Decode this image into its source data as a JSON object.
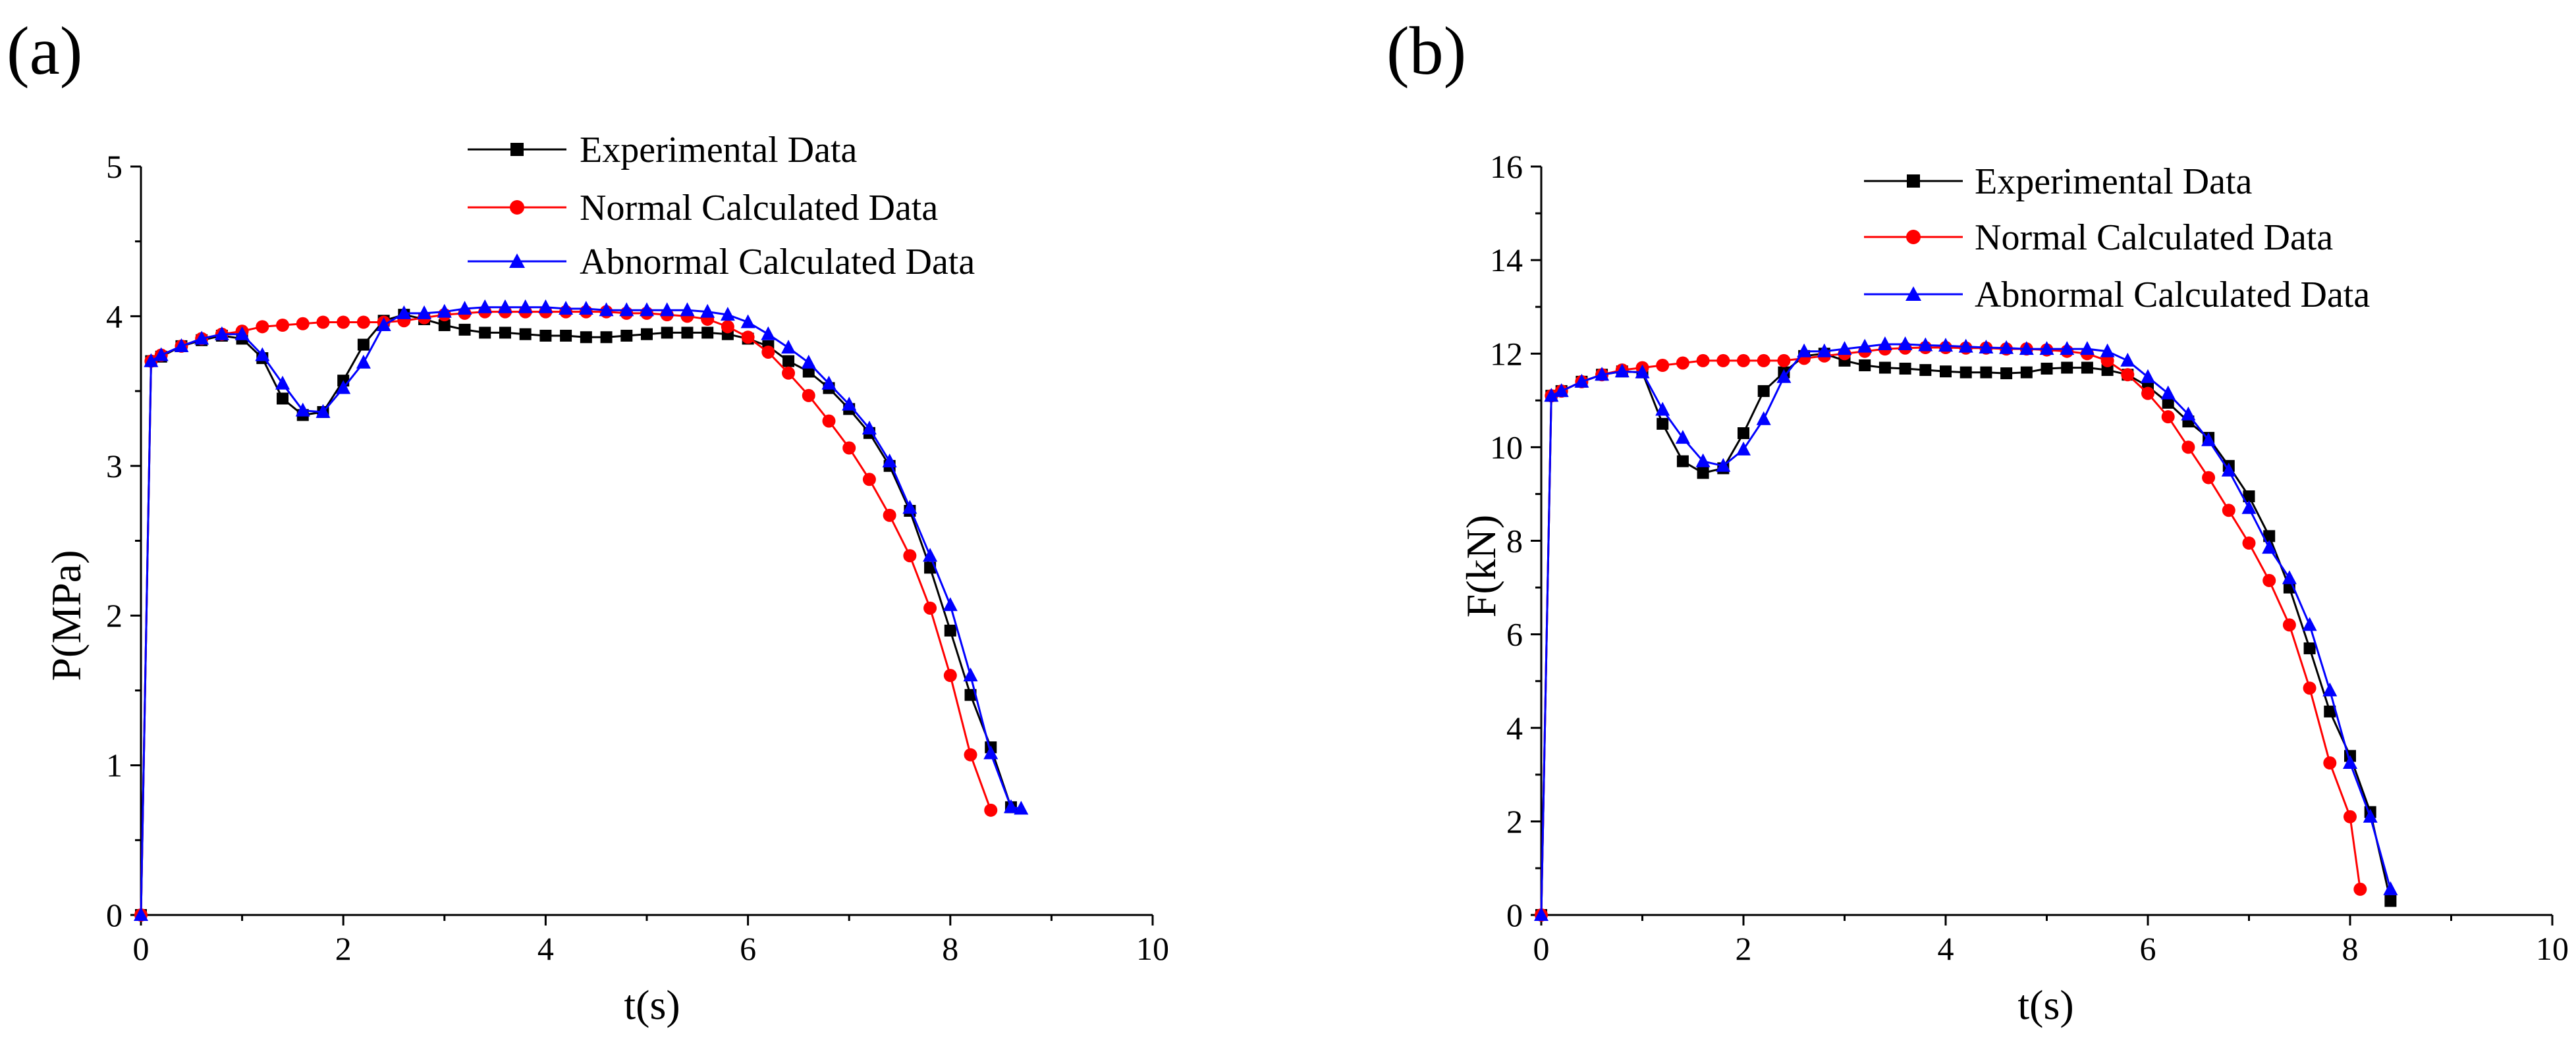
{
  "chart_data": [
    {
      "type": "line",
      "panel_label": "(a)",
      "title": "",
      "xlabel": "t(s)",
      "ylabel": "P(MPa)",
      "xlim": [
        0,
        10
      ],
      "ylim": [
        0,
        5
      ],
      "xticks": [
        0,
        2,
        4,
        6,
        8,
        10
      ],
      "yticks": [
        0,
        1,
        2,
        3,
        4,
        5
      ],
      "grid": false,
      "legend_position": "top-center",
      "series": [
        {
          "name": "Experimental Data",
          "color": "#000000",
          "marker": "square",
          "x": [
            0,
            0.1,
            0.2,
            0.4,
            0.6,
            0.8,
            1.0,
            1.2,
            1.4,
            1.6,
            1.8,
            2.0,
            2.2,
            2.4,
            2.6,
            2.8,
            3.0,
            3.2,
            3.4,
            3.6,
            3.8,
            4.0,
            4.2,
            4.4,
            4.6,
            4.8,
            5.0,
            5.2,
            5.4,
            5.6,
            5.8,
            6.0,
            6.2,
            6.4,
            6.6,
            6.8,
            7.0,
            7.2,
            7.4,
            7.6,
            7.8,
            8.0,
            8.2,
            8.4,
            8.6
          ],
          "y": [
            0,
            3.7,
            3.73,
            3.8,
            3.84,
            3.87,
            3.85,
            3.72,
            3.45,
            3.34,
            3.36,
            3.57,
            3.81,
            3.97,
            4.01,
            3.98,
            3.94,
            3.91,
            3.89,
            3.89,
            3.88,
            3.87,
            3.87,
            3.86,
            3.86,
            3.87,
            3.88,
            3.89,
            3.89,
            3.89,
            3.88,
            3.85,
            3.8,
            3.7,
            3.63,
            3.52,
            3.38,
            3.22,
            3.0,
            2.7,
            2.32,
            1.9,
            1.47,
            1.12,
            0.72
          ]
        },
        {
          "name": "Normal Calculated Data",
          "color": "#ff0000",
          "marker": "circle",
          "x": [
            0,
            0.1,
            0.2,
            0.4,
            0.6,
            0.8,
            1.0,
            1.2,
            1.4,
            1.6,
            1.8,
            2.0,
            2.2,
            2.4,
            2.6,
            2.8,
            3.0,
            3.2,
            3.4,
            3.6,
            3.8,
            4.0,
            4.2,
            4.4,
            4.6,
            4.8,
            5.0,
            5.2,
            5.4,
            5.6,
            5.8,
            6.0,
            6.2,
            6.4,
            6.6,
            6.8,
            7.0,
            7.2,
            7.4,
            7.6,
            7.8,
            8.0,
            8.2,
            8.4
          ],
          "y": [
            0,
            3.7,
            3.74,
            3.8,
            3.85,
            3.88,
            3.9,
            3.93,
            3.94,
            3.95,
            3.96,
            3.96,
            3.96,
            3.96,
            3.97,
            3.99,
            4.01,
            4.02,
            4.03,
            4.03,
            4.03,
            4.03,
            4.03,
            4.03,
            4.03,
            4.02,
            4.02,
            4.01,
            4.0,
            3.98,
            3.93,
            3.86,
            3.76,
            3.62,
            3.47,
            3.3,
            3.12,
            2.91,
            2.67,
            2.4,
            2.05,
            1.6,
            1.07,
            0.7
          ]
        },
        {
          "name": "Abnormal Calculated Data",
          "color": "#0000ff",
          "marker": "triangle",
          "x": [
            0,
            0.1,
            0.2,
            0.4,
            0.6,
            0.8,
            1.0,
            1.2,
            1.4,
            1.6,
            1.8,
            2.0,
            2.2,
            2.4,
            2.6,
            2.8,
            3.0,
            3.2,
            3.4,
            3.6,
            3.8,
            4.0,
            4.2,
            4.4,
            4.6,
            4.8,
            5.0,
            5.2,
            5.4,
            5.6,
            5.8,
            6.0,
            6.2,
            6.4,
            6.6,
            6.8,
            7.0,
            7.2,
            7.4,
            7.6,
            7.8,
            8.0,
            8.2,
            8.4,
            8.6,
            8.7
          ],
          "y": [
            0,
            3.7,
            3.74,
            3.8,
            3.85,
            3.88,
            3.88,
            3.74,
            3.55,
            3.37,
            3.36,
            3.52,
            3.69,
            3.94,
            4.02,
            4.02,
            4.03,
            4.05,
            4.06,
            4.06,
            4.06,
            4.06,
            4.05,
            4.05,
            4.04,
            4.04,
            4.04,
            4.04,
            4.04,
            4.03,
            4.01,
            3.96,
            3.88,
            3.79,
            3.69,
            3.55,
            3.41,
            3.25,
            3.03,
            2.72,
            2.4,
            2.07,
            1.6,
            1.08,
            0.72,
            0.71
          ]
        }
      ]
    },
    {
      "type": "line",
      "panel_label": "(b)",
      "title": "",
      "xlabel": "t(s)",
      "ylabel": "F(kN)",
      "xlim": [
        0,
        10
      ],
      "ylim": [
        0,
        16
      ],
      "xticks": [
        0,
        2,
        4,
        6,
        8,
        10
      ],
      "yticks": [
        0,
        2,
        4,
        6,
        8,
        10,
        12,
        14,
        16
      ],
      "grid": false,
      "legend_position": "top-center",
      "series": [
        {
          "name": "Experimental Data",
          "color": "#000000",
          "marker": "square",
          "x": [
            0,
            0.1,
            0.2,
            0.4,
            0.6,
            0.8,
            1.0,
            1.2,
            1.4,
            1.6,
            1.8,
            2.0,
            2.2,
            2.4,
            2.6,
            2.8,
            3.0,
            3.2,
            3.4,
            3.6,
            3.8,
            4.0,
            4.2,
            4.4,
            4.6,
            4.8,
            5.0,
            5.2,
            5.4,
            5.6,
            5.8,
            6.0,
            6.2,
            6.4,
            6.6,
            6.8,
            7.0,
            7.2,
            7.4,
            7.6,
            7.8,
            8.0,
            8.2,
            8.4
          ],
          "y": [
            0,
            11.1,
            11.2,
            11.4,
            11.55,
            11.62,
            11.6,
            10.5,
            9.7,
            9.45,
            9.55,
            10.3,
            11.2,
            11.6,
            11.95,
            12.0,
            11.85,
            11.75,
            11.7,
            11.68,
            11.65,
            11.62,
            11.6,
            11.6,
            11.58,
            11.6,
            11.68,
            11.7,
            11.7,
            11.65,
            11.55,
            11.3,
            10.95,
            10.55,
            10.2,
            9.6,
            8.95,
            8.1,
            7.0,
            5.7,
            4.35,
            3.4,
            2.2,
            0.3
          ]
        },
        {
          "name": "Normal Calculated Data",
          "color": "#ff0000",
          "marker": "circle",
          "x": [
            0,
            0.1,
            0.2,
            0.4,
            0.6,
            0.8,
            1.0,
            1.2,
            1.4,
            1.6,
            1.8,
            2.0,
            2.2,
            2.4,
            2.6,
            2.8,
            3.0,
            3.2,
            3.4,
            3.6,
            3.8,
            4.0,
            4.2,
            4.4,
            4.6,
            4.8,
            5.0,
            5.2,
            5.4,
            5.6,
            5.8,
            6.0,
            6.2,
            6.4,
            6.6,
            6.8,
            7.0,
            7.2,
            7.4,
            7.6,
            7.8,
            8.0,
            8.1
          ],
          "y": [
            0,
            11.1,
            11.2,
            11.4,
            11.55,
            11.65,
            11.7,
            11.75,
            11.8,
            11.85,
            11.85,
            11.85,
            11.85,
            11.85,
            11.9,
            11.95,
            12.0,
            12.05,
            12.1,
            12.12,
            12.13,
            12.13,
            12.12,
            12.12,
            12.1,
            12.1,
            12.08,
            12.05,
            12.0,
            11.85,
            11.55,
            11.15,
            10.65,
            10.0,
            9.35,
            8.65,
            7.95,
            7.15,
            6.2,
            4.85,
            3.25,
            2.1,
            0.55
          ]
        },
        {
          "name": "Abnormal Calculated Data",
          "color": "#0000ff",
          "marker": "triangle",
          "x": [
            0,
            0.1,
            0.2,
            0.4,
            0.6,
            0.8,
            1.0,
            1.2,
            1.4,
            1.6,
            1.8,
            2.0,
            2.2,
            2.4,
            2.6,
            2.8,
            3.0,
            3.2,
            3.4,
            3.6,
            3.8,
            4.0,
            4.2,
            4.4,
            4.6,
            4.8,
            5.0,
            5.2,
            5.4,
            5.6,
            5.8,
            6.0,
            6.2,
            6.4,
            6.6,
            6.8,
            7.0,
            7.2,
            7.4,
            7.6,
            7.8,
            8.0,
            8.2,
            8.4
          ],
          "y": [
            0,
            11.1,
            11.2,
            11.4,
            11.55,
            11.62,
            11.6,
            10.8,
            10.2,
            9.7,
            9.6,
            9.95,
            10.6,
            11.5,
            12.05,
            12.05,
            12.1,
            12.15,
            12.2,
            12.2,
            12.18,
            12.17,
            12.15,
            12.13,
            12.12,
            12.1,
            12.1,
            12.1,
            12.1,
            12.05,
            11.85,
            11.5,
            11.15,
            10.7,
            10.15,
            9.5,
            8.7,
            7.85,
            7.2,
            6.2,
            4.8,
            3.25,
            2.1,
            0.55
          ]
        }
      ]
    }
  ]
}
